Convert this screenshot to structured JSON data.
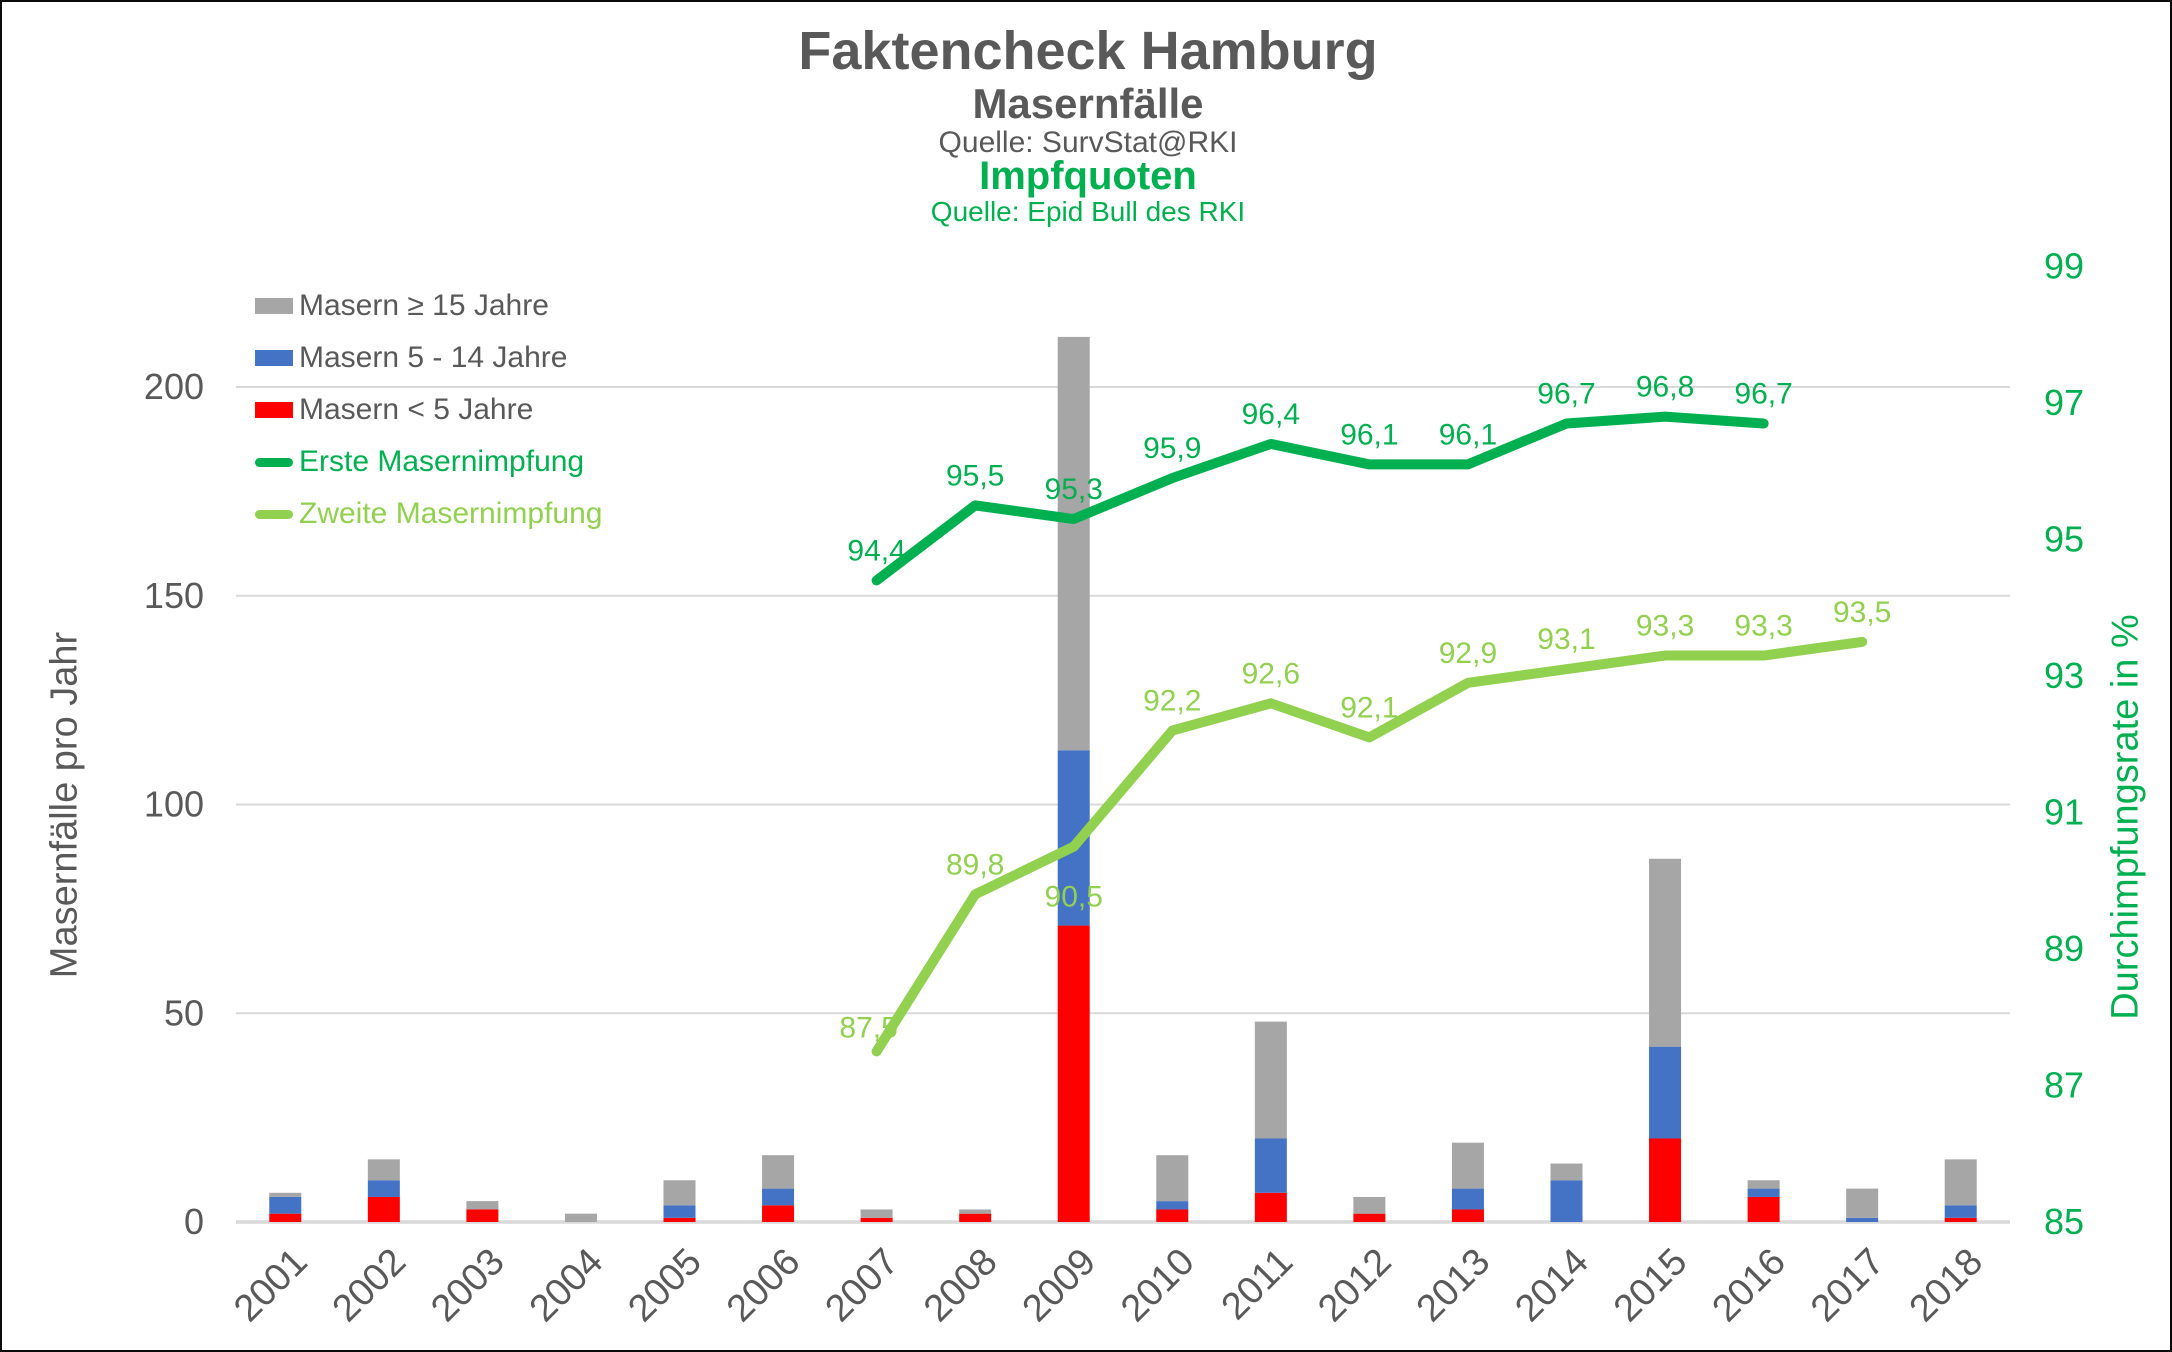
{
  "titles": {
    "main": "Faktencheck Hamburg",
    "sub1": "Masernfälle",
    "source1": "Quelle: SurvStat@RKI",
    "sub2": "Impfquoten",
    "source2": "Quelle: Epid Bull des RKI"
  },
  "colors": {
    "text_gray": "#595959",
    "grid": "#d9d9d9",
    "bar_gray": "#a6a6a6",
    "bar_blue": "#4472c4",
    "bar_red": "#ff0000",
    "line_green_dark": "#00b050",
    "line_green_light": "#92d050"
  },
  "legend": {
    "items": [
      {
        "label": "Masern ≥ 15 Jahre",
        "swatch": "bar",
        "color": "#a6a6a6",
        "text_color": "#595959"
      },
      {
        "label": "Masern 5 - 14 Jahre",
        "swatch": "bar",
        "color": "#4472c4",
        "text_color": "#595959"
      },
      {
        "label": "Masern < 5 Jahre",
        "swatch": "bar",
        "color": "#ff0000",
        "text_color": "#595959"
      },
      {
        "label": "Erste Masernimpfung",
        "swatch": "line",
        "color": "#00b050",
        "text_color": "#00b050"
      },
      {
        "label": "Zweite Masernimpfung",
        "swatch": "line",
        "color": "#92d050",
        "text_color": "#92d050"
      }
    ]
  },
  "axes": {
    "left": {
      "title": "Masernfälle pro Jahr",
      "ticks": [
        0,
        50,
        100,
        150,
        200
      ]
    },
    "right": {
      "title": "Durchimpfungsrate in %",
      "ticks": [
        85,
        87,
        89,
        91,
        93,
        95,
        97,
        99
      ]
    },
    "x": {
      "categories": [
        "2001",
        "2002",
        "2003",
        "2004",
        "2005",
        "2006",
        "2007",
        "2008",
        "2009",
        "2010",
        "2011",
        "2012",
        "2013",
        "2014",
        "2015",
        "2016",
        "2017",
        "2018"
      ]
    }
  },
  "chart_data": {
    "type": "combo_stacked_bar_line",
    "categories": [
      "2001",
      "2002",
      "2003",
      "2004",
      "2005",
      "2006",
      "2007",
      "2008",
      "2009",
      "2010",
      "2011",
      "2012",
      "2013",
      "2014",
      "2015",
      "2016",
      "2017",
      "2018"
    ],
    "bar_series": [
      {
        "name": "Masern < 5 Jahre",
        "color": "#ff0000",
        "axis": "left",
        "values": [
          2,
          6,
          3,
          0,
          1,
          4,
          1,
          2,
          71,
          3,
          7,
          2,
          3,
          0,
          20,
          6,
          0,
          1
        ]
      },
      {
        "name": "Masern 5 - 14 Jahre",
        "color": "#4472c4",
        "axis": "left",
        "values": [
          4,
          4,
          0,
          0,
          3,
          4,
          0,
          0,
          42,
          2,
          13,
          0,
          5,
          10,
          22,
          2,
          1,
          3
        ]
      },
      {
        "name": "Masern ≥ 15 Jahre",
        "color": "#a6a6a6",
        "axis": "left",
        "values": [
          1,
          5,
          2,
          2,
          6,
          8,
          2,
          1,
          99,
          11,
          28,
          4,
          11,
          4,
          45,
          2,
          7,
          11
        ]
      }
    ],
    "line_series": [
      {
        "name": "Erste Masernimpfung",
        "color": "#00b050",
        "axis": "right",
        "values": [
          null,
          null,
          null,
          null,
          null,
          null,
          94.4,
          95.5,
          95.3,
          95.9,
          96.4,
          96.1,
          96.1,
          96.7,
          96.8,
          96.7,
          null,
          null
        ],
        "labels": [
          null,
          null,
          null,
          null,
          null,
          null,
          "94,4",
          "95,5",
          "95,3",
          "95,9",
          "96,4",
          "96,1",
          "96,1",
          "96,7",
          "96,8",
          "96,7",
          null,
          null
        ]
      },
      {
        "name": "Zweite Masernimpfung",
        "color": "#92d050",
        "axis": "right",
        "values": [
          null,
          null,
          null,
          null,
          null,
          null,
          87.5,
          89.8,
          90.5,
          92.2,
          92.6,
          92.1,
          92.9,
          93.1,
          93.3,
          93.3,
          93.5,
          null
        ],
        "labels": [
          null,
          null,
          null,
          null,
          null,
          null,
          "87,5",
          "89,8",
          "90,5",
          "92,2",
          "92,6",
          "92,1",
          "92,9",
          "93,1",
          "93,3",
          "93,3",
          "93,5",
          null
        ]
      }
    ],
    "left_axis": {
      "label": "Masernfälle pro Jahr",
      "range": [
        0,
        200
      ],
      "gridlines": [
        0,
        50,
        100,
        150,
        200
      ]
    },
    "right_axis": {
      "label": "Durchimpfungsrate in %",
      "range": [
        85,
        99
      ],
      "tick_step": 2,
      "unit": "%"
    },
    "decimal_separator": ","
  }
}
